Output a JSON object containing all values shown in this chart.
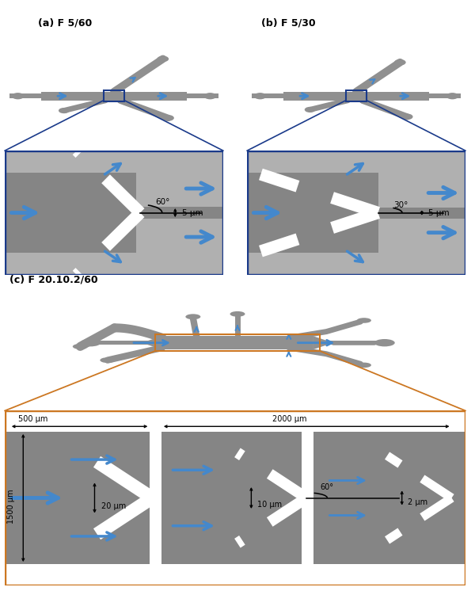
{
  "title_a": "(a) F 5/60",
  "title_b": "(b) F 5/30",
  "title_c": "(c) F 20.10.2/60",
  "label_5um_a": "5 μm",
  "label_5um_b": "5 μm",
  "label_500um": "500 μm",
  "label_2000um": "2000 μm",
  "label_1500um": "1500 μm",
  "label_20um": "20 μm",
  "label_10um": "10 μm",
  "label_2um": "2 μm",
  "label_60deg": "60°",
  "label_30deg": "30°"
}
